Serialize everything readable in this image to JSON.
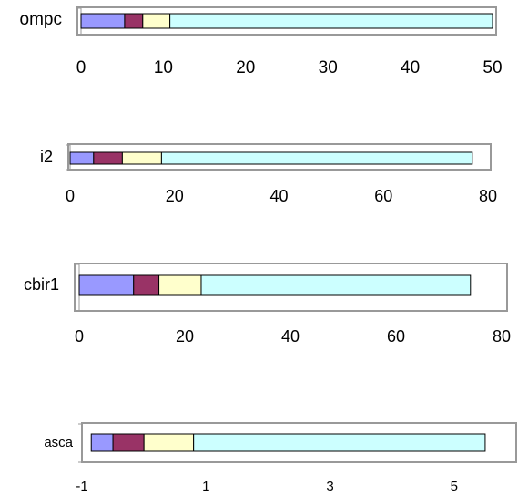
{
  "colors": {
    "seg1": "#9999ff",
    "seg2": "#993366",
    "seg3": "#ffffcc",
    "seg4": "#ccffff",
    "frame": "#999999",
    "border": "#000000"
  },
  "chart_data": [
    {
      "type": "bar",
      "orientation": "horizontal",
      "stacked": true,
      "category": "ompc",
      "segments": [
        5.3,
        2.2,
        3.3,
        39.2
      ],
      "xlim": [
        0,
        50
      ],
      "ticks": [
        0,
        10,
        20,
        30,
        40,
        50
      ],
      "tick_labels": [
        "0",
        "10",
        "20",
        "30",
        "40",
        "50"
      ]
    },
    {
      "type": "bar",
      "orientation": "horizontal",
      "stacked": true,
      "category": "i2",
      "segments": [
        4.5,
        5.5,
        7.5,
        59.5
      ],
      "xlim": [
        0,
        80
      ],
      "ticks": [
        0,
        20,
        40,
        60,
        80
      ],
      "tick_labels": [
        "0",
        "20",
        "40",
        "60",
        "80"
      ]
    },
    {
      "type": "bar",
      "orientation": "horizontal",
      "stacked": true,
      "category": "cbir1",
      "segments": [
        10.3,
        4.8,
        8,
        51
      ],
      "xlim": [
        0,
        80
      ],
      "ticks": [
        0,
        20,
        40,
        60,
        80
      ],
      "tick_labels": [
        "0",
        "20",
        "40",
        "60",
        "80"
      ]
    },
    {
      "type": "bar",
      "orientation": "horizontal",
      "stacked": true,
      "category": "asca",
      "x_start": -0.85,
      "segments": [
        0.35,
        0.5,
        0.8,
        4.7
      ],
      "xlim": [
        -1,
        6
      ],
      "ticks": [
        -1,
        1,
        3,
        5
      ],
      "tick_labels": [
        "-1",
        "1",
        "3",
        "5"
      ]
    }
  ]
}
